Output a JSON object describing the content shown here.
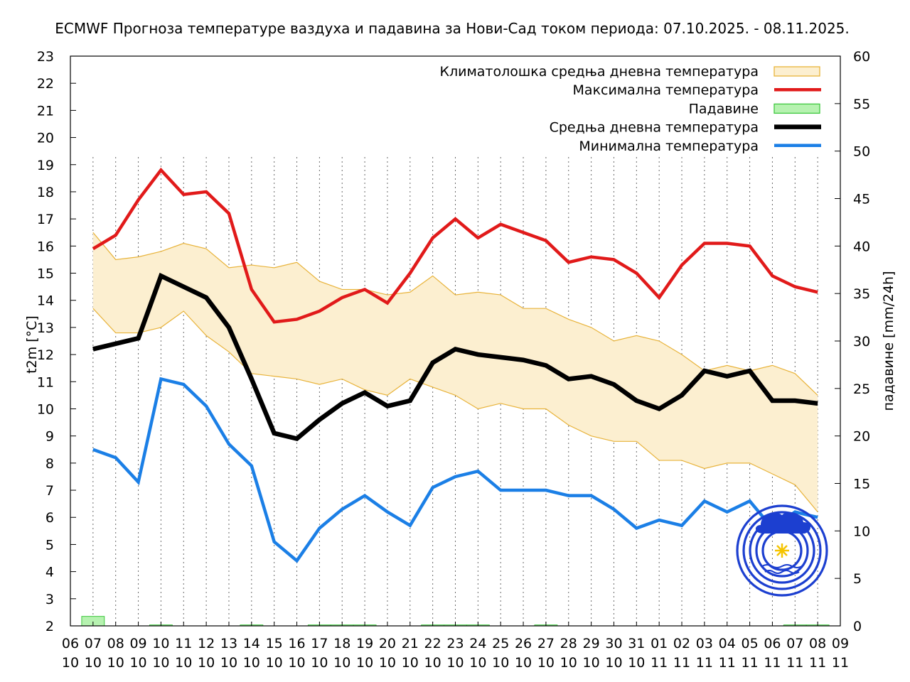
{
  "chart_data": {
    "type": "line",
    "title": "ECMWF Прогноза температуре ваздуха и падавина за Нови-Сад током периода: 07.10.2025. - 08.11.2025.",
    "ylabel": "t2m [°C]",
    "y2label": "падавине [mm/24h]",
    "ylim": [
      2,
      23
    ],
    "y2lim": [
      0,
      60
    ],
    "y_ticks": [
      2,
      3,
      4,
      5,
      6,
      7,
      8,
      9,
      10,
      11,
      12,
      13,
      14,
      15,
      16,
      17,
      18,
      19,
      20,
      21,
      22,
      23
    ],
    "y2_ticks": [
      0,
      5,
      10,
      15,
      20,
      25,
      30,
      35,
      40,
      45,
      50,
      55,
      60
    ],
    "x_tick_days": [
      "06",
      "07",
      "08",
      "09",
      "10",
      "11",
      "12",
      "13",
      "14",
      "15",
      "16",
      "17",
      "18",
      "19",
      "20",
      "21",
      "22",
      "23",
      "24",
      "25",
      "26",
      "27",
      "28",
      "29",
      "30",
      "31",
      "01",
      "02",
      "03",
      "04",
      "05",
      "06",
      "07",
      "08",
      "09"
    ],
    "x_tick_months": [
      "10",
      "10",
      "10",
      "10",
      "10",
      "10",
      "10",
      "10",
      "10",
      "10",
      "10",
      "10",
      "10",
      "10",
      "10",
      "10",
      "10",
      "10",
      "10",
      "10",
      "10",
      "10",
      "10",
      "10",
      "10",
      "10",
      "11",
      "11",
      "11",
      "11",
      "11",
      "11",
      "11",
      "11",
      "11"
    ],
    "x": [
      "07.10",
      "08.10",
      "09.10",
      "10.10",
      "11.10",
      "12.10",
      "13.10",
      "14.10",
      "15.10",
      "16.10",
      "17.10",
      "18.10",
      "19.10",
      "20.10",
      "21.10",
      "22.10",
      "23.10",
      "24.10",
      "25.10",
      "26.10",
      "27.10",
      "28.10",
      "29.10",
      "30.10",
      "31.10",
      "01.11",
      "02.11",
      "03.11",
      "04.11",
      "05.11",
      "06.11",
      "07.11",
      "08.11"
    ],
    "grid": "vertical dotted lines at each day",
    "legend_position": "top-right",
    "legend": [
      "Климатолошка средња дневна температура",
      "Максимална температура",
      "Падавине",
      "Средња дневна температура",
      "Минимална температура"
    ],
    "colors": {
      "band_fill": "#fcefd0",
      "band_stroke": "#e8b33a",
      "max": "#e11a1a",
      "precip_fill": "#b6f2b0",
      "precip_stroke": "#3ec83e",
      "mean": "#000000",
      "min": "#1b7fe6"
    },
    "clim_upper": [
      16.5,
      15.5,
      15.6,
      15.8,
      16.1,
      15.9,
      15.2,
      15.3,
      15.2,
      15.4,
      14.7,
      14.4,
      14.4,
      14.2,
      14.3,
      14.9,
      14.2,
      14.3,
      14.2,
      13.7,
      13.7,
      13.3,
      13.0,
      12.5,
      12.7,
      12.5,
      12.0,
      11.4,
      11.6,
      11.4,
      11.6,
      11.3,
      10.5
    ],
    "clim_lower": [
      13.7,
      12.8,
      12.8,
      13.0,
      13.6,
      12.7,
      12.1,
      11.3,
      11.2,
      11.1,
      10.9,
      11.1,
      10.7,
      10.5,
      11.1,
      10.8,
      10.5,
      10.0,
      10.2,
      10.0,
      10.0,
      9.4,
      9.0,
      8.8,
      8.8,
      8.1,
      8.1,
      7.8,
      8.0,
      8.0,
      7.6,
      7.2,
      6.2
    ],
    "series": [
      {
        "name": "Максимална температура",
        "values": [
          15.9,
          16.4,
          17.7,
          18.8,
          17.9,
          18.0,
          17.2,
          14.4,
          13.2,
          13.3,
          13.6,
          14.1,
          14.4,
          13.9,
          15.0,
          16.3,
          17.0,
          16.3,
          16.8,
          16.5,
          16.2,
          15.4,
          15.6,
          15.5,
          15.0,
          14.1,
          15.3,
          16.1,
          16.1,
          16.0,
          14.9,
          14.5,
          14.3
        ]
      },
      {
        "name": "Средња дневна температура",
        "values": [
          12.2,
          12.4,
          12.6,
          14.9,
          14.5,
          14.1,
          13.0,
          11.1,
          9.1,
          8.9,
          9.6,
          10.2,
          10.6,
          10.1,
          10.3,
          11.7,
          12.2,
          12.0,
          11.9,
          11.8,
          11.6,
          11.1,
          11.2,
          10.9,
          10.3,
          10.0,
          10.5,
          11.4,
          11.2,
          11.4,
          10.3,
          10.3,
          10.2
        ]
      },
      {
        "name": "Минимална температура",
        "values": [
          8.5,
          8.2,
          7.3,
          11.1,
          10.9,
          10.1,
          8.7,
          7.9,
          5.1,
          4.4,
          5.6,
          6.3,
          6.8,
          6.2,
          5.7,
          7.1,
          7.5,
          7.7,
          7.0,
          7.0,
          7.0,
          6.8,
          6.8,
          6.3,
          5.6,
          5.9,
          5.7,
          6.6,
          6.2,
          6.6,
          5.6,
          6.2,
          6.0
        ]
      },
      {
        "name": "Падавине",
        "values": [
          1.0,
          0,
          0,
          0.1,
          0,
          0,
          0,
          0.1,
          0,
          0,
          0.1,
          0.1,
          0.1,
          0,
          0,
          0.1,
          0.1,
          0.1,
          0,
          0,
          0.1,
          0,
          0,
          0,
          0,
          0,
          0,
          0,
          0,
          0,
          0,
          0.1,
          0.1
        ]
      }
    ]
  }
}
